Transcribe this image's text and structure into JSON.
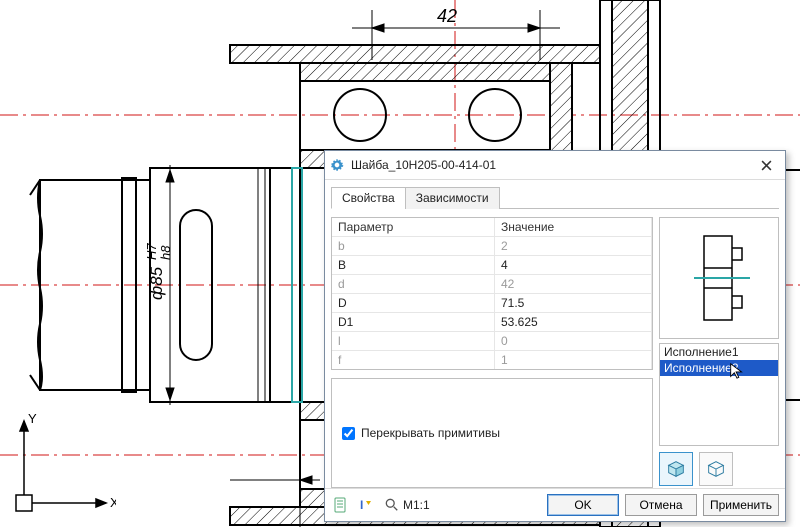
{
  "dialog": {
    "title": "Шайба_10Н205-00-414-01",
    "tabs": {
      "properties": "Свойства",
      "dependencies": "Зависимости",
      "active": 0
    },
    "param_header": {
      "name": "Параметр",
      "value": "Значение"
    },
    "params": [
      {
        "name": "b",
        "value": "2",
        "disabled": true
      },
      {
        "name": "B",
        "value": "4",
        "disabled": false
      },
      {
        "name": "d",
        "value": "42",
        "disabled": true
      },
      {
        "name": "D",
        "value": "71.5",
        "disabled": false
      },
      {
        "name": "D1",
        "value": "53.625",
        "disabled": false
      },
      {
        "name": "l",
        "value": "0",
        "disabled": true
      },
      {
        "name": "f",
        "value": "1",
        "disabled": true
      }
    ],
    "overlap_checkbox": {
      "label": "Перекрывать примитивы",
      "checked": true
    },
    "variants": {
      "items": [
        "Исполнение1",
        "Исполнение2"
      ],
      "selected_index": 1
    },
    "zoom_label": "M1:1",
    "buttons": {
      "ok": "OK",
      "cancel": "Отмена",
      "apply": "Применить"
    }
  },
  "drawing": {
    "dimensions": {
      "top_width": "42",
      "diameter_label": "ф85",
      "fit_upper": "H7",
      "fit_lower": "h8"
    },
    "colors": {
      "contour": "#000000",
      "centerline": "#d01414",
      "dimension": "#000000",
      "highlight": "#2aa6a6",
      "hatch": "#000000"
    },
    "line_widths": {
      "contour": 2,
      "thin": 1
    },
    "axis_labels": {
      "x": "X",
      "y": "Y"
    }
  }
}
